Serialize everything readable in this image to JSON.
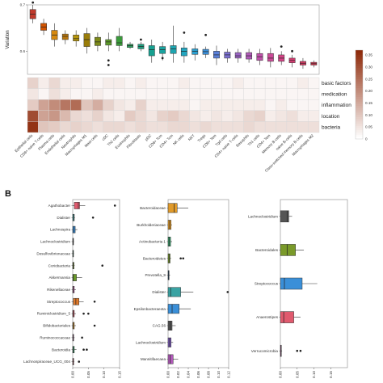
{
  "panel_label_b": "B",
  "colors": {
    "heat_low": "#ffffff",
    "heat_high": "#8e2a0a"
  },
  "chart_data": [
    {
      "type": "box",
      "ylabel": "Variation",
      "ylim": [
        0.55,
        0.7
      ],
      "yticks": [
        "0.6",
        "0.7"
      ],
      "categories": [
        "Epithelial cells",
        "CD8+ naive T-cells",
        "Plasma cells",
        "Endothelial cells",
        "Neutrophils",
        "Macrophages M1",
        "Mast cells",
        "cDC",
        "Th2 cells",
        "Eosinophils",
        "Fibroblasts",
        "pDC",
        "CD8+ Tcm",
        "CD4+ Tcm",
        "NK cells",
        "NKT",
        "Tregs",
        "CD8+ Tem",
        "Tgd cells",
        "CD4+ naive T-cells",
        "Basophils",
        "Th1 cells",
        "CD4+ Tem",
        "Memory B-cells",
        "naive B-cells",
        "Class-switched memory B-cells",
        "Macrophages M2"
      ],
      "colors": [
        "#c0392b",
        "#d35400",
        "#d68910",
        "#b9770e",
        "#b7950b",
        "#9a7d0a",
        "#7d8b1a",
        "#5d9b2a",
        "#3b9b3b",
        "#2e9e5e",
        "#1f9e7f",
        "#17a090",
        "#1aa3a0",
        "#1ea5b0",
        "#22a6c0",
        "#2a9fd0",
        "#3a8fd8",
        "#5a7fd8",
        "#7a6fd0",
        "#9a63c4",
        "#b05ab8",
        "#c052aa",
        "#cc4a98",
        "#d44486",
        "#d83e74",
        "#d83a64",
        "#d83a54"
      ],
      "boxes": [
        {
          "q1": 0.67,
          "med": 0.68,
          "q3": 0.69,
          "lo": 0.66,
          "hi": 0.7,
          "out": [
            0.705
          ]
        },
        {
          "q1": 0.645,
          "med": 0.652,
          "q3": 0.66,
          "lo": 0.635,
          "hi": 0.67,
          "out": []
        },
        {
          "q1": 0.625,
          "med": 0.635,
          "q3": 0.645,
          "lo": 0.61,
          "hi": 0.66,
          "out": []
        },
        {
          "q1": 0.625,
          "med": 0.632,
          "q3": 0.637,
          "lo": 0.615,
          "hi": 0.645,
          "out": []
        },
        {
          "q1": 0.622,
          "med": 0.627,
          "q3": 0.635,
          "lo": 0.61,
          "hi": 0.645,
          "out": []
        },
        {
          "q1": 0.61,
          "med": 0.625,
          "q3": 0.638,
          "lo": 0.595,
          "hi": 0.65,
          "out": []
        },
        {
          "q1": 0.612,
          "med": 0.62,
          "q3": 0.63,
          "lo": 0.6,
          "hi": 0.64,
          "out": []
        },
        {
          "q1": 0.613,
          "med": 0.62,
          "q3": 0.625,
          "lo": 0.6,
          "hi": 0.64,
          "out": [
            0.58,
            0.57
          ]
        },
        {
          "q1": 0.612,
          "med": 0.618,
          "q3": 0.632,
          "lo": 0.6,
          "hi": 0.65,
          "out": []
        },
        {
          "q1": 0.608,
          "med": 0.612,
          "q3": 0.615,
          "lo": 0.605,
          "hi": 0.62,
          "out": []
        },
        {
          "q1": 0.605,
          "med": 0.61,
          "q3": 0.615,
          "lo": 0.6,
          "hi": 0.62,
          "out": [
            0.625
          ]
        },
        {
          "q1": 0.59,
          "med": 0.603,
          "q3": 0.612,
          "lo": 0.575,
          "hi": 0.625,
          "out": []
        },
        {
          "q1": 0.595,
          "med": 0.603,
          "q3": 0.61,
          "lo": 0.58,
          "hi": 0.62,
          "out": [
            0.585
          ]
        },
        {
          "q1": 0.595,
          "med": 0.605,
          "q3": 0.612,
          "lo": 0.575,
          "hi": 0.655,
          "out": []
        },
        {
          "q1": 0.59,
          "med": 0.6,
          "q3": 0.607,
          "lo": 0.575,
          "hi": 0.62,
          "out": [
            0.64
          ]
        },
        {
          "q1": 0.593,
          "med": 0.6,
          "q3": 0.605,
          "lo": 0.58,
          "hi": 0.615,
          "out": []
        },
        {
          "q1": 0.593,
          "med": 0.599,
          "q3": 0.604,
          "lo": 0.585,
          "hi": 0.61,
          "out": [
            0.635
          ]
        },
        {
          "q1": 0.585,
          "med": 0.592,
          "q3": 0.6,
          "lo": 0.57,
          "hi": 0.612,
          "out": []
        },
        {
          "q1": 0.585,
          "med": 0.592,
          "q3": 0.598,
          "lo": 0.575,
          "hi": 0.605,
          "out": []
        },
        {
          "q1": 0.585,
          "med": 0.59,
          "q3": 0.597,
          "lo": 0.575,
          "hi": 0.605,
          "out": []
        },
        {
          "q1": 0.583,
          "med": 0.59,
          "q3": 0.597,
          "lo": 0.575,
          "hi": 0.605,
          "out": []
        },
        {
          "q1": 0.58,
          "med": 0.588,
          "q3": 0.595,
          "lo": 0.57,
          "hi": 0.605,
          "out": []
        },
        {
          "q1": 0.578,
          "med": 0.585,
          "q3": 0.595,
          "lo": 0.565,
          "hi": 0.607,
          "out": []
        },
        {
          "q1": 0.578,
          "med": 0.585,
          "q3": 0.592,
          "lo": 0.57,
          "hi": 0.6,
          "out": [
            0.61
          ]
        },
        {
          "q1": 0.575,
          "med": 0.58,
          "q3": 0.585,
          "lo": 0.565,
          "hi": 0.592,
          "out": [
            0.6
          ]
        },
        {
          "q1": 0.57,
          "med": 0.574,
          "q3": 0.578,
          "lo": 0.562,
          "hi": 0.585,
          "out": []
        },
        {
          "q1": 0.57,
          "med": 0.573,
          "q3": 0.576,
          "lo": 0.565,
          "hi": 0.58,
          "out": []
        }
      ]
    },
    {
      "type": "heatmap",
      "rows": [
        "basic factors",
        "medication",
        "inflammation",
        "location",
        "bacteria"
      ],
      "columns_ref": "same as box plot categories",
      "values": [
        [
          0.06,
          0.02,
          0.05,
          0.02,
          0.02,
          0.01,
          0.01,
          0.02,
          0.02,
          0.01,
          0.02,
          0.01,
          0.01,
          0.01,
          0.02,
          0.01,
          0.01,
          0.01,
          0.01,
          0.02,
          0.01,
          0.01,
          0.01,
          0.01,
          0.01,
          0.02,
          0.01
        ],
        [
          0.03,
          0.01,
          0.04,
          0.02,
          0.01,
          0.01,
          0.02,
          0.01,
          0.01,
          0.01,
          0.01,
          0.01,
          0.01,
          0.01,
          0.01,
          0.01,
          0.01,
          0.01,
          0.01,
          0.01,
          0.01,
          0.01,
          0.01,
          0.01,
          0.01,
          0.01,
          0.01
        ],
        [
          0.07,
          0.14,
          0.18,
          0.22,
          0.24,
          0.08,
          0.12,
          0.06,
          0.03,
          0.02,
          0.06,
          0.02,
          0.02,
          0.02,
          0.02,
          0.01,
          0.02,
          0.02,
          0.02,
          0.02,
          0.02,
          0.02,
          0.01,
          0.02,
          0.01,
          0.01,
          0.01
        ],
        [
          0.3,
          0.14,
          0.16,
          0.1,
          0.05,
          0.04,
          0.06,
          0.03,
          0.02,
          0.07,
          0.05,
          0.03,
          0.06,
          0.07,
          0.05,
          0.03,
          0.02,
          0.03,
          0.02,
          0.03,
          0.05,
          0.06,
          0.02,
          0.03,
          0.04,
          0.02,
          0.02
        ],
        [
          0.35,
          0.08,
          0.07,
          0.05,
          0.06,
          0.05,
          0.04,
          0.05,
          0.05,
          0.04,
          0.05,
          0.04,
          0.04,
          0.05,
          0.05,
          0.04,
          0.05,
          0.04,
          0.04,
          0.04,
          0.05,
          0.04,
          0.04,
          0.04,
          0.04,
          0.04,
          0.04
        ]
      ],
      "colorbar_ticks": [
        "0.35",
        "0.30",
        "0.25",
        "0.20",
        "0.15",
        "0.10",
        "0.05",
        "0"
      ],
      "colorbar_range": [
        0,
        0.37
      ]
    },
    {
      "type": "box",
      "orientation": "horizontal",
      "xlim": [
        0,
        0.15
      ],
      "xticks": [
        "0.00",
        "0.05",
        "0.10",
        "0.15"
      ],
      "categories": [
        "Agathobacter",
        "Dialister",
        "Lachnospira",
        "Lachnoclostridium",
        "Desulfovibrionaceae",
        "Coriobacteria",
        "Akkermansia",
        "Rikenellaceae",
        "Streptococcus",
        "Ruminiclostridium_5",
        "Bifidobacteriales",
        "Ruminococcaceae",
        "Bacteroidia",
        "Lachnospiraceae_UCG_004"
      ],
      "colors": [
        "#e05a6e",
        "#3aa3a3",
        "#3a8fd8",
        "#555555",
        "#3aa36e",
        "#7a9a2a",
        "#6a9a2a",
        "#c05aa0",
        "#e07a2a",
        "#e05a6e",
        "#e09a2a",
        "#b05a9a",
        "#3aa36e",
        "#e05a6e"
      ],
      "boxes": [
        {
          "q1": 0.005,
          "med": 0.018,
          "q3": 0.022,
          "lo": 0.0,
          "hi": 0.04,
          "out": [
            0.135
          ]
        },
        {
          "q1": 0.0,
          "med": 0.003,
          "q3": 0.005,
          "lo": 0.0,
          "hi": 0.007,
          "out": [
            0.065
          ]
        },
        {
          "q1": 0.0,
          "med": 0.004,
          "q3": 0.008,
          "lo": 0.0,
          "hi": 0.015,
          "out": []
        },
        {
          "q1": 0.0,
          "med": 0.001,
          "q3": 0.002,
          "lo": 0.0,
          "hi": 0.004,
          "out": []
        },
        {
          "q1": 0.0,
          "med": 0.001,
          "q3": 0.002,
          "lo": 0.0,
          "hi": 0.004,
          "out": []
        },
        {
          "q1": 0.0,
          "med": 0.002,
          "q3": 0.004,
          "lo": 0.0,
          "hi": 0.006,
          "out": [
            0.095
          ]
        },
        {
          "q1": 0.0,
          "med": 0.002,
          "q3": 0.012,
          "lo": 0.0,
          "hi": 0.03,
          "out": []
        },
        {
          "q1": 0.0,
          "med": 0.002,
          "q3": 0.005,
          "lo": 0.0,
          "hi": 0.01,
          "out": []
        },
        {
          "q1": 0.002,
          "med": 0.01,
          "q3": 0.02,
          "lo": 0.0,
          "hi": 0.035,
          "out": [
            0.07
          ]
        },
        {
          "q1": 0.0,
          "med": 0.002,
          "q3": 0.005,
          "lo": 0.0,
          "hi": 0.01,
          "out": [
            0.035,
            0.05
          ]
        },
        {
          "q1": 0.0,
          "med": 0.002,
          "q3": 0.005,
          "lo": 0.0,
          "hi": 0.01,
          "out": [
            0.07
          ]
        },
        {
          "q1": 0.0,
          "med": 0.001,
          "q3": 0.003,
          "lo": 0.0,
          "hi": 0.006,
          "out": [
            0.03
          ]
        },
        {
          "q1": 0.0,
          "med": 0.002,
          "q3": 0.005,
          "lo": 0.0,
          "hi": 0.012,
          "out": [
            0.035,
            0.045
          ]
        },
        {
          "q1": 0.0,
          "med": 0.001,
          "q3": 0.003,
          "lo": 0.0,
          "hi": 0.005,
          "out": [
            0.02
          ]
        }
      ]
    },
    {
      "type": "box",
      "orientation": "horizontal",
      "xlim": [
        0,
        0.12
      ],
      "xticks": [
        "0.00",
        "0.02",
        "0.04",
        "0.06",
        "0.08",
        "0.10",
        "0.12"
      ],
      "categories": [
        "Bacteroidaceae",
        "Burkholderiaceae",
        "Actinobacteria 1",
        "Bacteroidetes",
        "Prevotella_9",
        "Dialister",
        "Epsilonbacteraeota",
        "CAG.56",
        "Lachnoclostridium",
        "Mannitifaecaea"
      ],
      "colors": [
        "#e09a2a",
        "#e09a2a",
        "#3aa36e",
        "#7a9a2a",
        "#3a8fd8",
        "#3aa3a3",
        "#3a8fd8",
        "#555555",
        "#7a5ab8",
        "#b05ab8"
      ],
      "boxes": [
        {
          "q1": 0.0,
          "med": 0.012,
          "q3": 0.018,
          "lo": 0.0,
          "hi": 0.04,
          "out": []
        },
        {
          "q1": 0.0,
          "med": 0.003,
          "q3": 0.006,
          "lo": 0.0,
          "hi": 0.008,
          "out": []
        },
        {
          "q1": 0.0,
          "med": 0.002,
          "q3": 0.005,
          "lo": 0.0,
          "hi": 0.008,
          "out": []
        },
        {
          "q1": 0.0,
          "med": 0.002,
          "q3": 0.004,
          "lo": 0.0,
          "hi": 0.006,
          "out": [
            0.025,
            0.03
          ]
        },
        {
          "q1": 0.0,
          "med": 0.001,
          "q3": 0.002,
          "lo": 0.0,
          "hi": 0.004,
          "out": []
        },
        {
          "q1": 0.0,
          "med": 0.005,
          "q3": 0.025,
          "lo": 0.0,
          "hi": 0.05,
          "out": [
            0.118
          ]
        },
        {
          "q1": 0.0,
          "med": 0.008,
          "q3": 0.022,
          "lo": 0.0,
          "hi": 0.045,
          "out": []
        },
        {
          "q1": 0.0,
          "med": 0.004,
          "q3": 0.008,
          "lo": 0.0,
          "hi": 0.015,
          "out": []
        },
        {
          "q1": 0.0,
          "med": 0.003,
          "q3": 0.006,
          "lo": 0.0,
          "hi": 0.01,
          "out": []
        },
        {
          "q1": 0.0,
          "med": 0.004,
          "q3": 0.01,
          "lo": 0.0,
          "hi": 0.02,
          "out": []
        }
      ]
    },
    {
      "type": "box",
      "orientation": "horizontal",
      "xlim": [
        0,
        0.2
      ],
      "xticks": [
        "0.00",
        "0.05",
        "0.10",
        "0.15"
      ],
      "categories": [
        "Lachnoclostridium",
        "Bacteroidales",
        "Streptococcus",
        "Anaerostipes",
        "Verrucomicrobia"
      ],
      "colors": [
        "#555555",
        "#7a9a2a",
        "#3a8fd8",
        "#e05a6e",
        "#c05aa0"
      ],
      "boxes": [
        {
          "q1": 0.0,
          "med": 0.02,
          "q3": 0.025,
          "lo": 0.0,
          "hi": 0.035,
          "out": []
        },
        {
          "q1": 0.0,
          "med": 0.02,
          "q3": 0.045,
          "lo": 0.0,
          "hi": 0.07,
          "out": []
        },
        {
          "q1": 0.0,
          "med": 0.012,
          "q3": 0.065,
          "lo": 0.0,
          "hi": 0.11,
          "out": []
        },
        {
          "q1": 0.0,
          "med": 0.01,
          "q3": 0.04,
          "lo": 0.0,
          "hi": 0.06,
          "out": []
        },
        {
          "q1": 0.0,
          "med": 0.001,
          "q3": 0.003,
          "lo": 0.0,
          "hi": 0.005,
          "out": [
            0.05,
            0.06
          ]
        }
      ]
    }
  ]
}
